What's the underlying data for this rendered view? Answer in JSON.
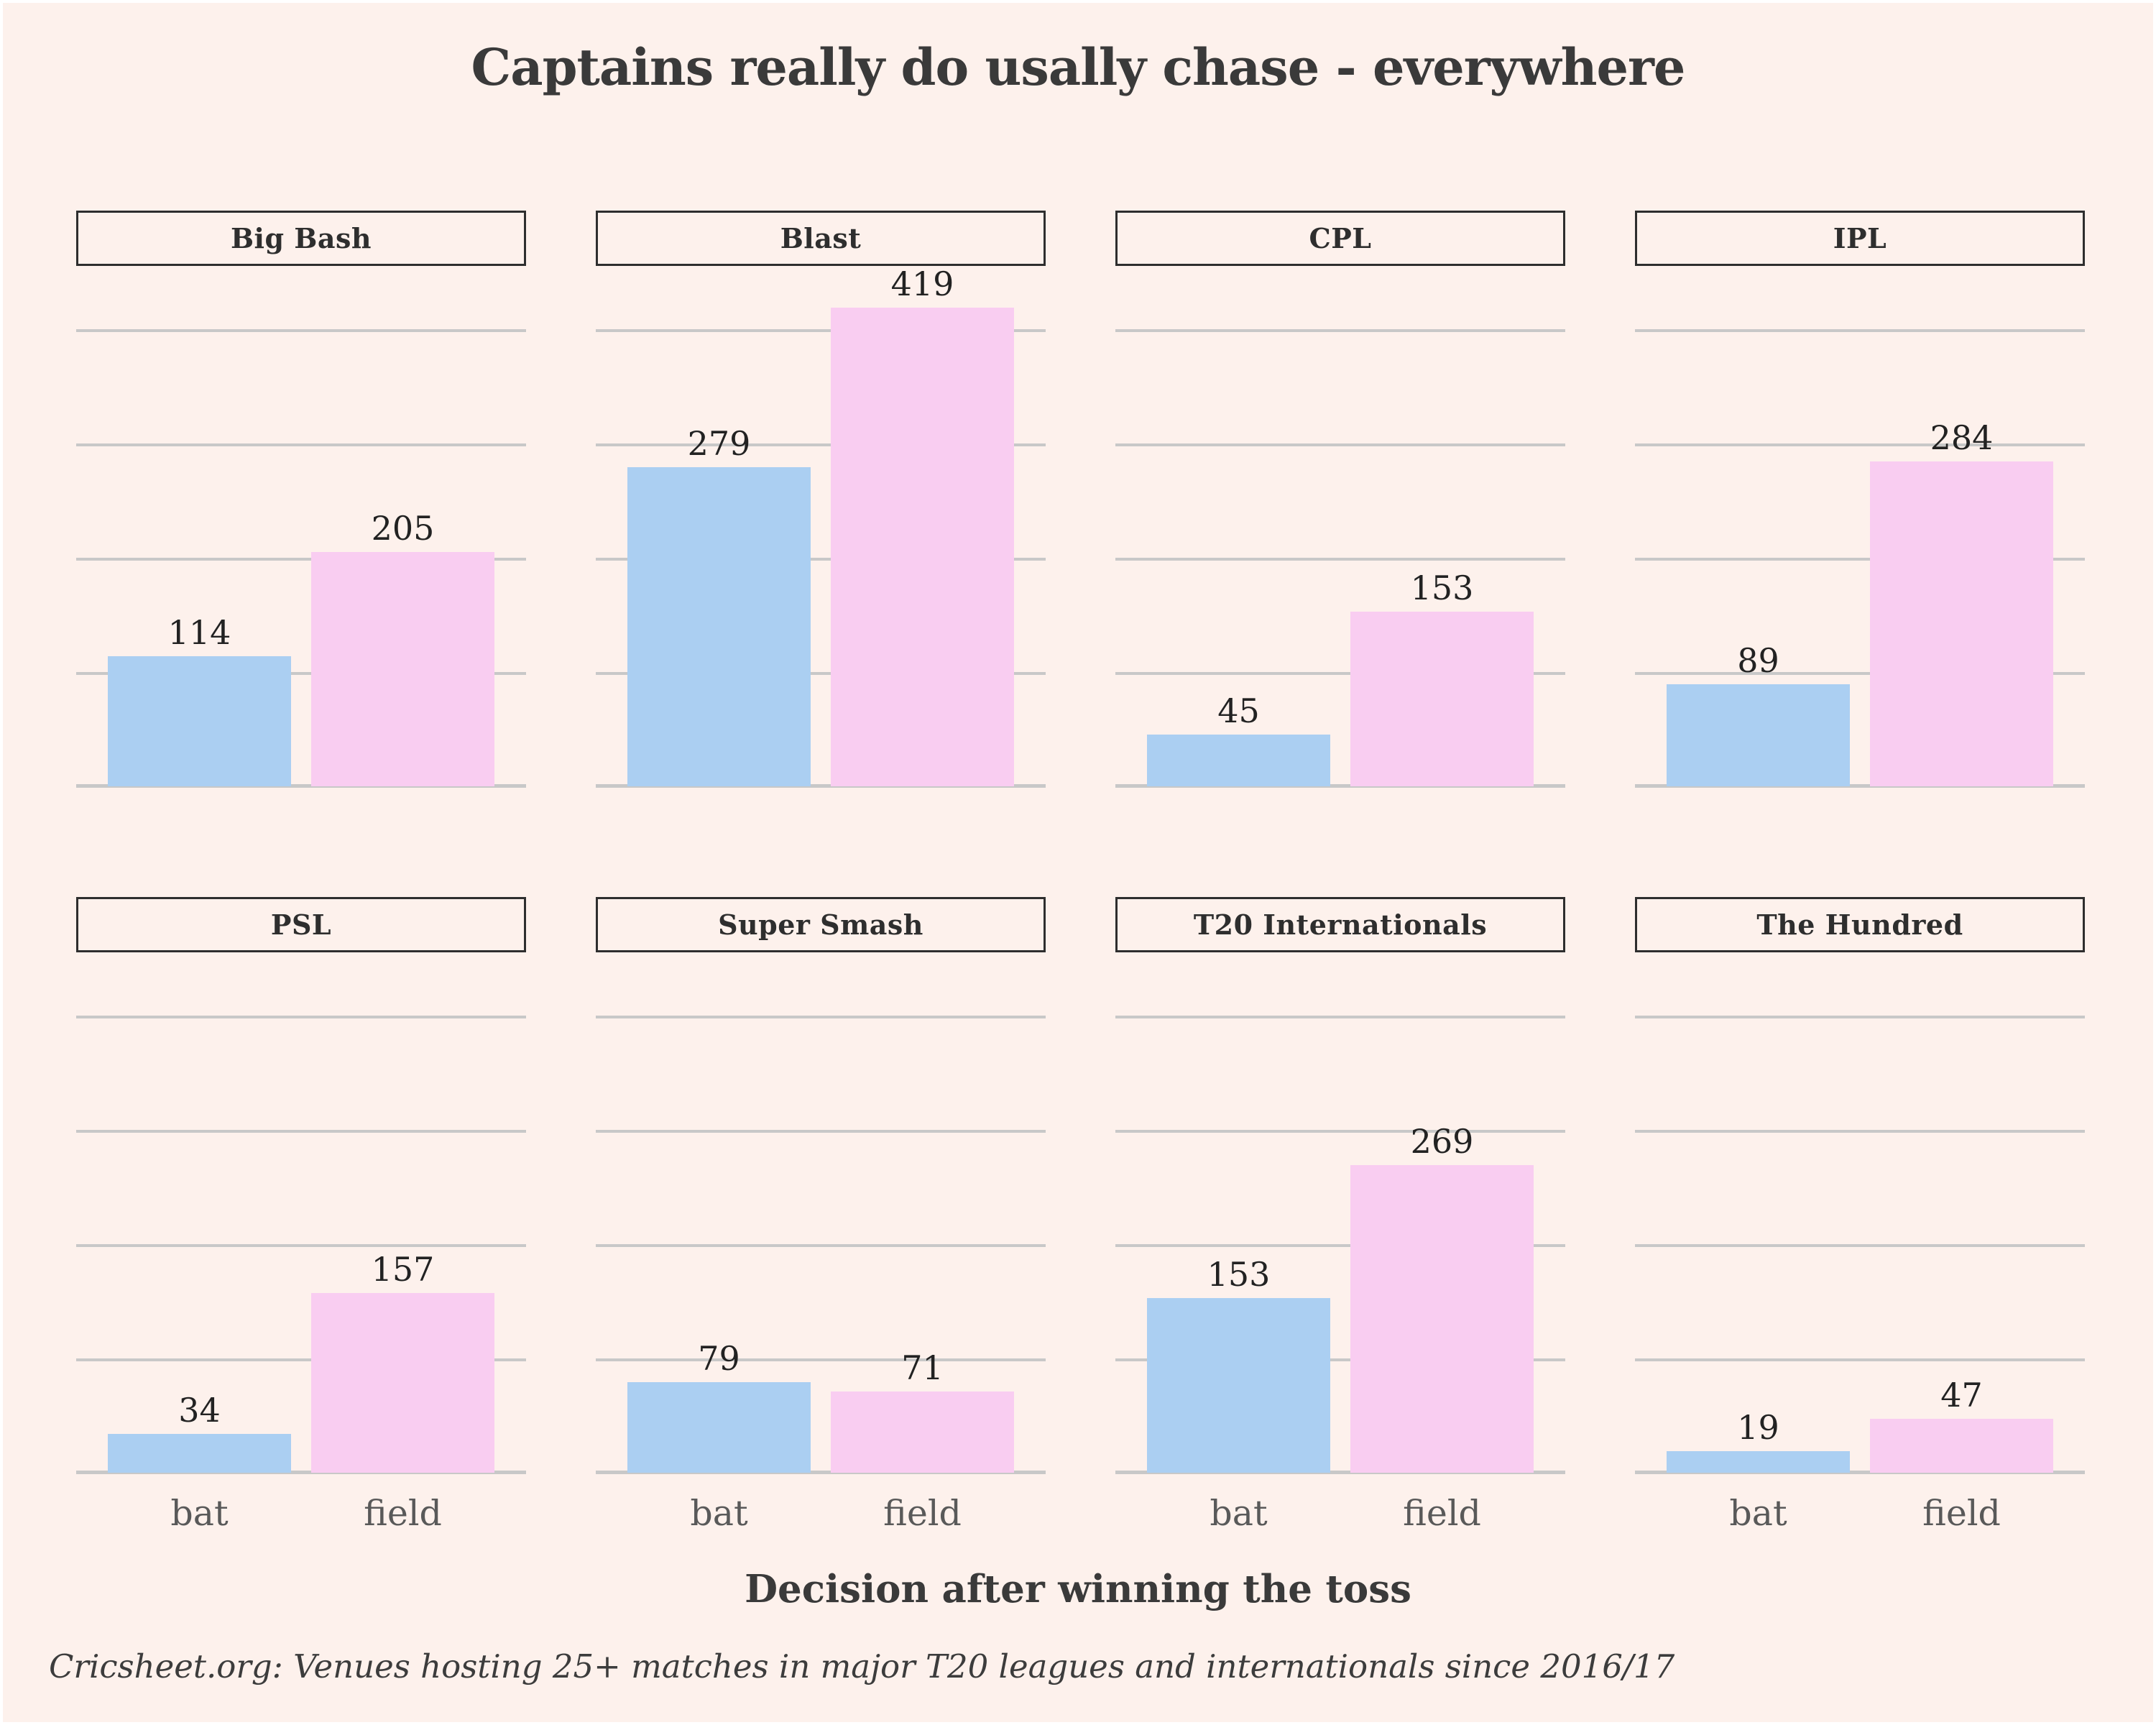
{
  "title": "Captains really do usally chase - everywhere",
  "axis": {
    "x_title": "Decision after winning the toss",
    "categories": [
      "bat",
      "field"
    ]
  },
  "caption": "Cricsheet.org: Venues hosting 25+ matches in major T20 leagues and internationals since 2016/17",
  "colors": {
    "bat_bar": "#abcff2",
    "field_bar": "#f9cdf1",
    "background": "#fdf1ec",
    "gridline": "#c8c8c8",
    "heading_text": "#3a3a3a",
    "tick_label": "#595959"
  },
  "chart_data": {
    "type": "bar",
    "faceted": true,
    "facet_layout": "2 rows x 4 columns",
    "title": "Captains really do usally chase - everywhere",
    "xlabel": "Decision after winning the toss",
    "ylabel": "",
    "categories": [
      "bat",
      "field"
    ],
    "ylim": [
      0,
      430
    ],
    "gridline_interval": 100,
    "grid": "horizontal only, no y tick labels",
    "legend_position": "none",
    "facets": [
      {
        "name": "Big Bash",
        "values": [
          114,
          205
        ]
      },
      {
        "name": "Blast",
        "values": [
          279,
          419
        ]
      },
      {
        "name": "CPL",
        "values": [
          45,
          153
        ]
      },
      {
        "name": "IPL",
        "values": [
          89,
          284
        ]
      },
      {
        "name": "PSL",
        "values": [
          34,
          157
        ]
      },
      {
        "name": "Super Smash",
        "values": [
          79,
          71
        ]
      },
      {
        "name": "T20 Internationals",
        "values": [
          153,
          269
        ]
      },
      {
        "name": "The Hundred",
        "values": [
          19,
          47
        ]
      }
    ]
  }
}
